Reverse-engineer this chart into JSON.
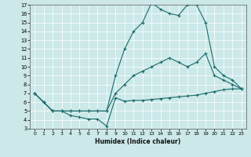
{
  "xlabel": "Humidex (Indice chaleur)",
  "background_color": "#cce8e8",
  "line_color": "#1a6b6b",
  "xlim": [
    -0.5,
    23.5
  ],
  "ylim": [
    3,
    17
  ],
  "xticks": [
    0,
    1,
    2,
    3,
    4,
    5,
    6,
    7,
    8,
    9,
    10,
    11,
    12,
    13,
    14,
    15,
    16,
    17,
    18,
    19,
    20,
    21,
    22,
    23
  ],
  "yticks": [
    3,
    4,
    5,
    6,
    7,
    8,
    9,
    10,
    11,
    12,
    13,
    14,
    15,
    16,
    17
  ],
  "line1_x": [
    0,
    1,
    2,
    3,
    4,
    5,
    6,
    7,
    8,
    9,
    10,
    11,
    12,
    13,
    14,
    15,
    16,
    17,
    18,
    19,
    20,
    21,
    22,
    23
  ],
  "line1_y": [
    7.0,
    6.0,
    5.0,
    5.0,
    4.5,
    4.3,
    4.1,
    4.1,
    3.3,
    6.5,
    6.1,
    6.2,
    6.2,
    6.3,
    6.4,
    6.5,
    6.6,
    6.7,
    6.8,
    7.0,
    7.2,
    7.4,
    7.5,
    7.5
  ],
  "line2_x": [
    0,
    1,
    2,
    3,
    4,
    5,
    6,
    7,
    8,
    9,
    10,
    11,
    12,
    13,
    14,
    15,
    16,
    17,
    18,
    19,
    20,
    21,
    22,
    23
  ],
  "line2_y": [
    7.0,
    6.0,
    5.0,
    5.0,
    5.0,
    5.0,
    5.0,
    5.0,
    5.0,
    7.0,
    8.0,
    9.0,
    9.5,
    10.0,
    10.5,
    11.0,
    10.5,
    10.0,
    10.5,
    11.5,
    9.0,
    8.5,
    8.0,
    7.5
  ],
  "line3_x": [
    0,
    1,
    2,
    3,
    4,
    5,
    6,
    7,
    8,
    9,
    10,
    11,
    12,
    13,
    14,
    15,
    16,
    17,
    18,
    19,
    20,
    21,
    22,
    23
  ],
  "line3_y": [
    7.0,
    6.0,
    5.0,
    5.0,
    5.0,
    5.0,
    5.0,
    5.0,
    5.0,
    9.0,
    12.0,
    14.0,
    15.0,
    17.2,
    16.5,
    16.0,
    15.8,
    17.0,
    17.0,
    15.0,
    10.0,
    9.0,
    8.5,
    7.5
  ]
}
